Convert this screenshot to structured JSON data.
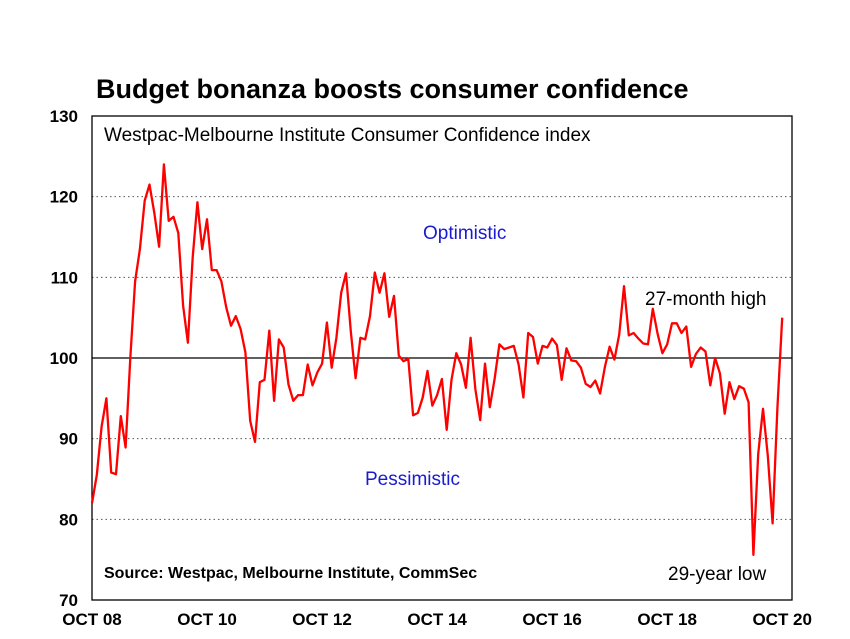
{
  "chart_data": {
    "type": "line",
    "title": "Budget bonanza boosts consumer confidence",
    "subtitle": "Westpac-Melbourne Institute Consumer Confidence index",
    "source": "Source: Westpac, Melbourne Institute, CommSec",
    "ylim": [
      70,
      130
    ],
    "yticks": [
      70,
      80,
      90,
      100,
      110,
      120,
      130
    ],
    "reference_line": 100,
    "grid": "horizontal dotted",
    "xlim": [
      2008.75,
      2020.92
    ],
    "xticks": [
      {
        "x": 2008.75,
        "label": "OCT 08"
      },
      {
        "x": 2010.75,
        "label": "OCT 10"
      },
      {
        "x": 2012.75,
        "label": "OCT 12"
      },
      {
        "x": 2014.75,
        "label": "OCT 14"
      },
      {
        "x": 2016.75,
        "label": "OCT 16"
      },
      {
        "x": 2018.75,
        "label": "OCT 18"
      },
      {
        "x": 2020.75,
        "label": "OCT 20"
      }
    ],
    "annotations": {
      "optimistic": "Optimistic",
      "pessimistic": "Pessimistic",
      "high": "27-month high",
      "low": "29-year low"
    },
    "series": [
      {
        "color": "#ff0000",
        "x_start": 2008.75,
        "x_step": 0.08333,
        "values": [
          82,
          85.5,
          91.5,
          95,
          85.8,
          85.6,
          92.8,
          88.9,
          100,
          109.5,
          113.5,
          119.5,
          121.5,
          118,
          113.8,
          124,
          117,
          117.5,
          115.5,
          106.5,
          101.9,
          112.5,
          119.3,
          113.5,
          117.2,
          110.9,
          110.9,
          109.5,
          106.3,
          104,
          105.2,
          103.6,
          100.7,
          92.2,
          89.6,
          97,
          97.3,
          103.4,
          94.7,
          102.3,
          101.3,
          96.7,
          94.7,
          95.4,
          95.4,
          99.2,
          96.6,
          98.2,
          99.3,
          104.4,
          98.8,
          102.5,
          108.1,
          110.5,
          103.3,
          97.5,
          102.5,
          102.3,
          105.2,
          110.6,
          108.1,
          110.5,
          105.1,
          107.7,
          100.3,
          99.6,
          99.9,
          92.9,
          93.2,
          95.1,
          98.4,
          94.1,
          95.4,
          97.4,
          91.1,
          97.3,
          100.6,
          99.2,
          96.3,
          102.5,
          96.1,
          92.3,
          99.3,
          93.9,
          97.4,
          101.7,
          101.1,
          101.3,
          101.5,
          99.2,
          95.1,
          103.1,
          102.6,
          99.3,
          101.5,
          101.3,
          102.4,
          101.6,
          97.3,
          101.2,
          99.7,
          99.6,
          98.8,
          96.8,
          96.4,
          97.2,
          95.6,
          98.9,
          101.4,
          99.8,
          102.9,
          108.9,
          102.8,
          103.1,
          102.4,
          101.8,
          101.7,
          106.1,
          103,
          100.6,
          101.7,
          104.3,
          104.3,
          103.1,
          103.9,
          98.9,
          100.5,
          101.3,
          100.8,
          96.6,
          100,
          98.1,
          93.1,
          97,
          94.9,
          96.5,
          96.2,
          94.5,
          75.6,
          88.1,
          93.7,
          87.9,
          79.5,
          93.8,
          105
        ]
      }
    ]
  }
}
